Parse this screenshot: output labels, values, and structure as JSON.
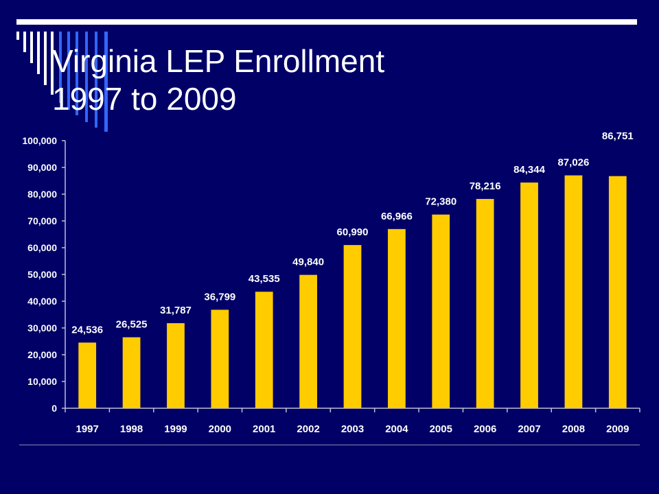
{
  "slide": {
    "title_line1": "Virginia LEP Enrollment",
    "title_line2": "1997 to 2009"
  },
  "colors": {
    "background": "#000066",
    "bar": "#ffcc00",
    "text": "#ffffff",
    "stripe_white": "#ffffff",
    "stripe_blue": "#3366ff"
  },
  "chart_data": {
    "type": "bar",
    "title": "",
    "xlabel": "",
    "ylabel": "",
    "ylim": [
      0,
      100000
    ],
    "yticks": [
      "0",
      "10,000",
      "20,000",
      "30,000",
      "40,000",
      "50,000",
      "60,000",
      "70,000",
      "80,000",
      "90,000",
      "100,000"
    ],
    "ytick_values": [
      0,
      10000,
      20000,
      30000,
      40000,
      50000,
      60000,
      70000,
      80000,
      90000,
      100000
    ],
    "categories": [
      "1997",
      "1998",
      "1999",
      "2000",
      "2001",
      "2002",
      "2003",
      "2004",
      "2005",
      "2006",
      "2007",
      "2008",
      "2009"
    ],
    "values": [
      24536,
      26525,
      31787,
      36799,
      43535,
      49840,
      60990,
      66966,
      72380,
      78216,
      84344,
      87026,
      86751
    ],
    "data_labels": [
      "24,536",
      "26,525",
      "31,787",
      "36,799",
      "43,535",
      "49,840",
      "60,990",
      "66,966",
      "72,380",
      "78,216",
      "84,344",
      "87,026",
      "86,751"
    ],
    "grid": false,
    "legend": "none"
  }
}
